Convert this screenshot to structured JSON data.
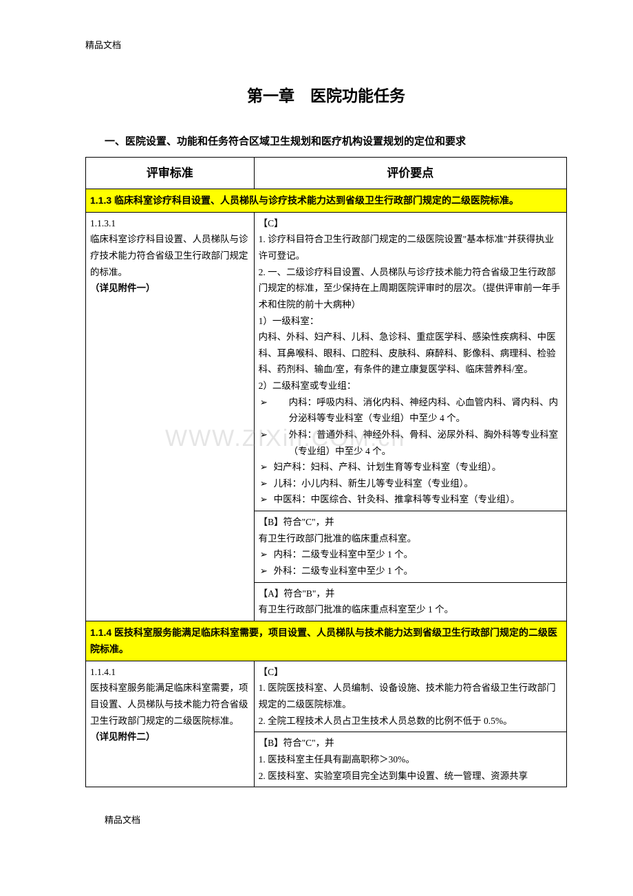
{
  "header": "精品文档",
  "footer": "精品文档",
  "watermark": "WWW.ZIXin.COM.cn",
  "chapter_title": "第一章　医院功能任务",
  "section_title": "一、医院设置、功能和任务符合区域卫生规划和医疗机构设置规划的定位和要求",
  "table": {
    "th_left": "评审标准",
    "th_right": "评价要点",
    "row1_highlight": "1.1.3 临床科室诊疗科目设置、人员梯队与诊疗技术能力达到省级卫生行政部门规定的二级医院标准。",
    "row1_left_num": "1.1.3.1",
    "row1_left_body": "临床科室诊疗科目设置、人员梯队与诊疗技术能力符合省级卫生行政部门规定的标准。",
    "row1_left_note": "（详见附件一）",
    "row1_c_tag": "【C】",
    "row1_c_1": "1. 诊疗科目符合卫生行政部门规定的二级医院设置\"基本标准\"并获得执业许可登记。",
    "row1_c_2": "2. 一、二级诊疗科目设置、人员梯队与诊疗技术能力符合省级卫生行政部门规定的标准，至少保持在上周期医院评审时的层次。（提供评审前一年手术和住院的前十大病种）",
    "row1_c_l1_label": "1）一级科室：",
    "row1_c_l1_body": "内科、外科、妇产科、儿科、急诊科、重症医学科、感染性疾病科、中医科、耳鼻喉科、眼科、口腔科、皮肤科、麻醉科、影像科、病理科、检验科、药剂科、输血/室，有条件的建立康复医学科、临床营养科/室。",
    "row1_c_l2_label": "2）二级科室或专业组：",
    "row1_c_a1": "内科：呼吸内科、消化内科、神经内科、心血管内科、肾内科、内分泌科等专业科室（专业组）中至少 4 个。",
    "row1_c_a2": "外科：普通外科、神经外科、骨科、泌尿外科、胸外科等专业科室（专业组）中至少 4 个。",
    "row1_c_a3": "妇产科：妇科、产科、计划生育等专业科室（专业组）。",
    "row1_c_a4": "儿科：小儿内科、新生儿等专业科室（专业组）。",
    "row1_c_a5": "中医科：中医综合、针灸科、推拿科等专业科室（专业组）。",
    "row1_b_tag": "【B】符合\"C\"，并",
    "row1_b_line": "有卫生行政部门批准的临床重点科室。",
    "row1_b_a1": "内科：二级专业科室中至少 1 个。",
    "row1_b_a2": "外科：二级专业科室中至少 1 个。",
    "row1_a_tag": "【A】符合\"B\"，并",
    "row1_a_line": "有卫生行政部门批准的临床重点科室至少 1 个。",
    "row2_highlight": "1.1.4 医技科室服务能满足临床科室需要，项目设置、人员梯队与技术能力达到省级卫生行政部门规定的二级医院标准。",
    "row2_left_num": "1.1.4.1",
    "row2_left_body": "医技科室服务能满足临床科室需要，项目设置、人员梯队与技术能力符合省级卫生行政部门规定的二级医院标准。",
    "row2_left_note": "（详见附件二）",
    "row2_c_tag": "【C】",
    "row2_c_1": "1. 医院医技科室、人员编制、设备设施、技术能力符合省级卫生行政部门规定的二级医院标准。",
    "row2_c_2": "2. 全院工程技术人员占卫生技术人员总数的比例不低于 0.5%。",
    "row2_b_tag": "【B】符合\"C\"，并",
    "row2_b_1": "1. 医技科室主任具有副高职称＞30%。",
    "row2_b_2": "2. 医技科室、实验室项目完全达到集中设置、统一管理、资源共享"
  }
}
